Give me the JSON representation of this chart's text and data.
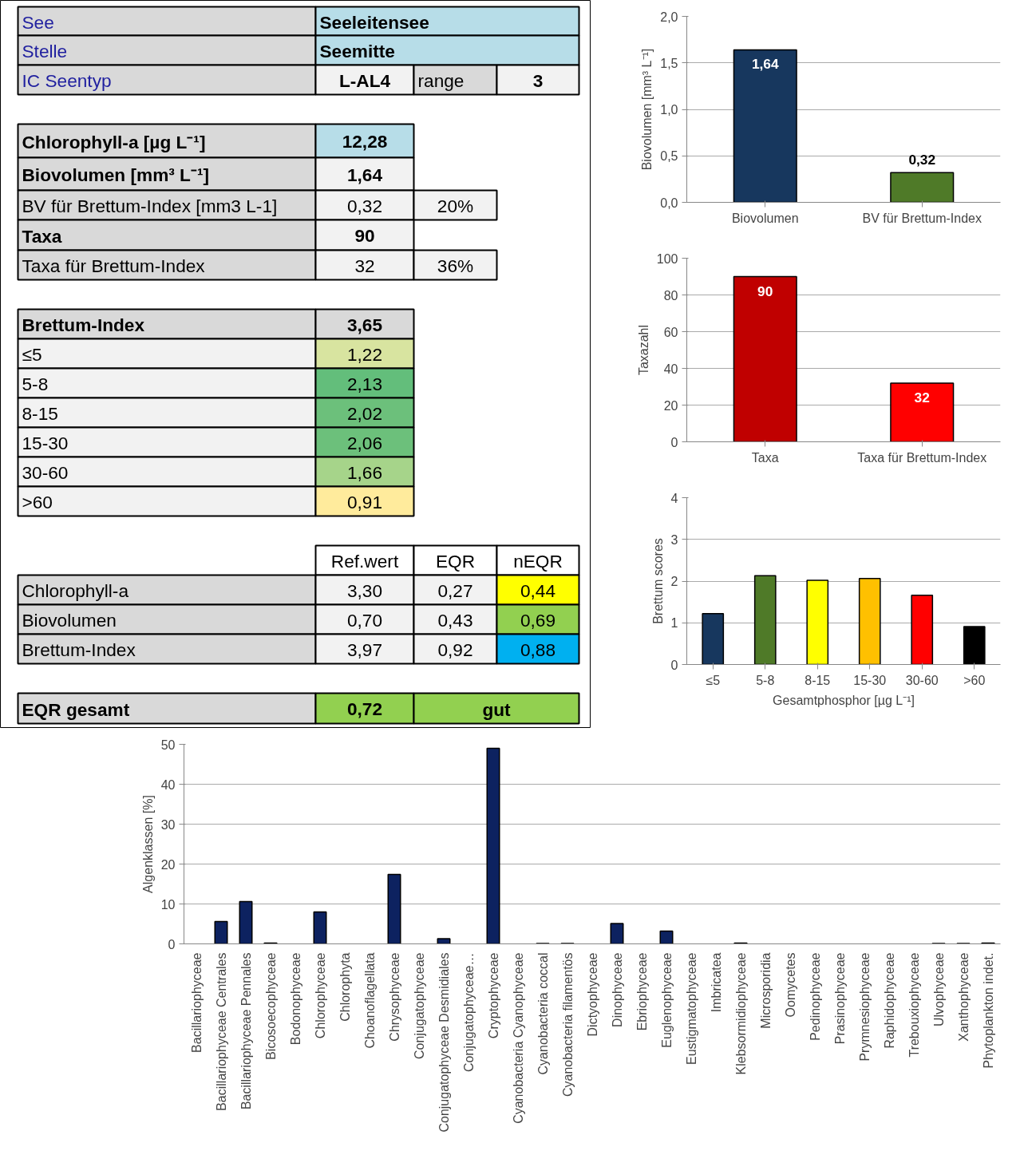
{
  "chart_data": [
    {
      "type": "other",
      "annotations": [
        "See",
        "Seeleitensee",
        "Stelle",
        "Seemitte",
        "IC Seentyp",
        "L-AL4",
        "range",
        "3",
        "Chlorophyll-a [µg L⁻¹]",
        "12,28",
        "Biovolumen [mm³ L⁻¹]",
        "1,64",
        "BV für Brettum-Index [mm3 L-1]",
        "0,32",
        "20%",
        "Taxa",
        "90",
        "Taxa für Brettum-Index",
        "32",
        "36%",
        "Brettum-Index",
        "3,65",
        "≤5",
        "1,22",
        "5-8",
        "2,13",
        "8-15",
        "2,02",
        "15-30",
        "2,06",
        "30-60",
        "1,66",
        ">60",
        "0,91",
        "Ref.wert",
        "EQR",
        "nEQR",
        "Chlorophyll-a",
        "3,30",
        "0,27",
        "0,44",
        "Biovolumen",
        "0,70",
        "0,43",
        "0,69",
        "Brettum-Index",
        "3,97",
        "0,92",
        "0,88",
        "EQR gesamt",
        "0,72",
        "gut"
      ]
    },
    {
      "type": "bar",
      "categories": [
        "Biovolumen",
        "BV für Brettum-Index"
      ],
      "values": [
        1.64,
        0.32
      ],
      "colors": [
        "#17375e",
        "#4f7a28"
      ],
      "value_labels": [
        "1,64",
        "0,32"
      ],
      "ylabel": "Biovolumen [mm³ L⁻¹]",
      "ylim": [
        0,
        2
      ],
      "yticks": [
        {
          "value": 0,
          "label": "0,0"
        },
        {
          "value": 0.5,
          "label": "0,5"
        },
        {
          "value": 1,
          "label": "1,0"
        },
        {
          "value": 1.5,
          "label": "1,5"
        },
        {
          "value": 2,
          "label": "2,0"
        }
      ],
      "grid": "y"
    },
    {
      "type": "bar",
      "categories": [
        "Taxa",
        "Taxa für Brettum-Index"
      ],
      "values": [
        90,
        32
      ],
      "colors": [
        "#c00000",
        "#ff0000"
      ],
      "data_labels": true,
      "ylabel": "Taxazahl",
      "ylim": [
        0,
        100
      ],
      "yticks": [
        0,
        20,
        40,
        60,
        80,
        100
      ],
      "grid": "y"
    },
    {
      "type": "bar",
      "categories": [
        "≤5",
        "5-8",
        "8-15",
        "15-30",
        "30-60",
        ">60"
      ],
      "values": [
        1.22,
        2.13,
        2.02,
        2.06,
        1.66,
        0.91
      ],
      "colors": [
        "#17375e",
        "#4f7a28",
        "#ffff00",
        "#ffc000",
        "#ff0000",
        "#000000"
      ],
      "xlabel": "Gesamtphosphor [µg L⁻¹]",
      "ylabel": "Brettum scores",
      "ylim": [
        0,
        4
      ],
      "yticks": [
        0,
        1,
        2,
        3,
        4
      ],
      "grid": "y"
    },
    {
      "type": "bar",
      "categories": [
        "Bacillariophyceae",
        "Bacillariophyceae Centrales",
        "Bacillariophyceae Pennales",
        "Bicosoecophyceae",
        "Bodonophyceae",
        "Chlorophyceae",
        "Chlorophyta",
        "Choanoflagellata",
        "Chrysophyceae",
        "Conjugatophyceae",
        "Conjugatophyceae Desmidiales",
        "Conjugatophyceae…",
        "Cryptophyceae",
        "Cyanobacteria Cyanophyceae",
        "Cyanobacteria coccal",
        "Cyanobacteria filamentös",
        "Dictyophyceae",
        "Dinophyceae",
        "Ebriophyceae",
        "Euglenophyceae",
        "Eustigmatophyceae",
        "Imbricatea",
        "Klebsormidiophyceae",
        "Microsporidia",
        "Oomycetes",
        "Pedinophyceae",
        "Prasinophyceae",
        "Prymnesiophyceae",
        "Raphidophyceae",
        "Trebouxiophyceae",
        "Ulvophyceae",
        "Xanthophyceae",
        "Phytoplankton indet."
      ],
      "values": [
        0,
        5.6,
        10.6,
        0.2,
        0,
        8.0,
        0,
        0,
        17.4,
        0,
        1.3,
        0,
        49.0,
        0,
        0.1,
        0.1,
        0,
        5.1,
        0,
        3.2,
        0,
        0,
        0.2,
        0,
        0,
        0,
        0,
        0,
        0,
        0,
        0.1,
        0.1,
        0.2
      ],
      "color": "#0d2260",
      "ylabel": "Algenklassen [%]",
      "ylim": [
        0,
        50
      ],
      "yticks": [
        0,
        10,
        20,
        30,
        40,
        50
      ],
      "grid": "y"
    }
  ]
}
